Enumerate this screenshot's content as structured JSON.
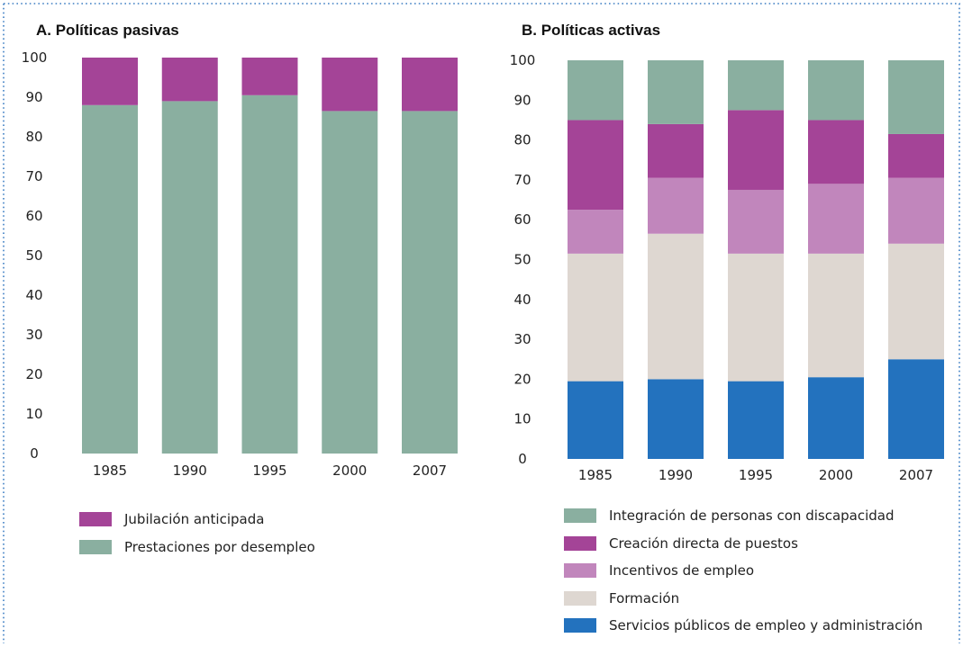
{
  "chart_data": [
    {
      "type": "bar",
      "stacked": true,
      "title": "A. Políticas pasivas",
      "categories": [
        "1985",
        "1990",
        "1995",
        "2000",
        "2007"
      ],
      "yticks": [
        "0",
        "10",
        "20",
        "30",
        "40",
        "50",
        "60",
        "70",
        "80",
        "90",
        "100"
      ],
      "ylim": [
        0,
        100
      ],
      "series": [
        {
          "name": "Prestaciones por desempleo",
          "color": "#8aafa0",
          "values": [
            88,
            89,
            90.5,
            86.5,
            86.5
          ]
        },
        {
          "name": "Jubilación anticipada",
          "color": "#a44497",
          "values": [
            12,
            11,
            9.5,
            13.5,
            13.5
          ]
        }
      ]
    },
    {
      "type": "bar",
      "stacked": true,
      "title": "B. Políticas activas",
      "categories": [
        "1985",
        "1990",
        "1995",
        "2000",
        "2007"
      ],
      "yticks": [
        "0",
        "10",
        "20",
        "30",
        "40",
        "50",
        "60",
        "70",
        "80",
        "90",
        "100"
      ],
      "ylim": [
        0,
        100
      ],
      "series": [
        {
          "name": "Servicios públicos de empleo y administración",
          "color": "#2372be",
          "values": [
            19.5,
            20,
            19.5,
            20.5,
            25
          ]
        },
        {
          "name": "Formación",
          "color": "#ded7d1",
          "values": [
            32,
            36.5,
            32,
            31,
            29
          ]
        },
        {
          "name": "Incentivos de empleo",
          "color": "#c186bc",
          "values": [
            11,
            14,
            16,
            17.5,
            16.5
          ]
        },
        {
          "name": "Creación directa de puestos",
          "color": "#a44497",
          "values": [
            22.5,
            13.5,
            20,
            16,
            11
          ]
        },
        {
          "name": "Integración de personas con discapacidad",
          "color": "#8aafa0",
          "values": [
            15,
            16,
            12.5,
            15,
            18.5
          ]
        }
      ]
    }
  ]
}
